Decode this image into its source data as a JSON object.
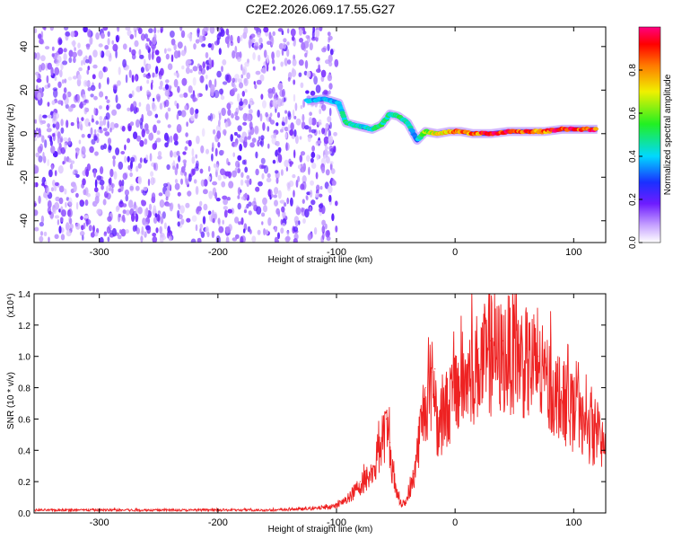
{
  "title": "C2E2.2026.069.17.55.G27",
  "chart_data": [
    {
      "type": "heatmap",
      "name": "spectrogram",
      "xlabel": "Height of straight line (km)",
      "ylabel": "Frequency (Hz)",
      "xlim": [
        -355,
        127
      ],
      "ylim": [
        -50,
        49
      ],
      "xticks": [
        -300,
        -200,
        -100,
        0,
        100
      ],
      "yticks": [
        -40,
        -20,
        0,
        20,
        40
      ],
      "colorbar": {
        "label": "Normalized spectral amplitude",
        "range": [
          0.0,
          1.0
        ],
        "ticks": [
          0.0,
          0.2,
          0.4,
          0.6,
          0.8
        ],
        "tick_labels": [
          "0.0",
          "0.2",
          "0.4",
          "0.6",
          "0.8"
        ]
      },
      "noise_region": {
        "x_from": -355,
        "x_to": -100,
        "amplitude": 0.12
      },
      "signal_track": [
        {
          "x": -125,
          "freq": 15,
          "amplitude": 0.38
        },
        {
          "x": -110,
          "freq": 16,
          "amplitude": 0.4
        },
        {
          "x": -98,
          "freq": 14,
          "amplitude": 0.36
        },
        {
          "x": -92,
          "freq": 5,
          "amplitude": 0.5
        },
        {
          "x": -85,
          "freq": 4,
          "amplitude": 0.45
        },
        {
          "x": -78,
          "freq": 3,
          "amplitude": 0.4
        },
        {
          "x": -70,
          "freq": 2,
          "amplitude": 0.45
        },
        {
          "x": -62,
          "freq": 4,
          "amplitude": 0.5
        },
        {
          "x": -55,
          "freq": 9,
          "amplitude": 0.45
        },
        {
          "x": -48,
          "freq": 8,
          "amplitude": 0.5
        },
        {
          "x": -40,
          "freq": 5,
          "amplitude": 0.45
        },
        {
          "x": -32,
          "freq": -3,
          "amplitude": 0.35
        },
        {
          "x": -25,
          "freq": 1,
          "amplitude": 0.6
        },
        {
          "x": -15,
          "freq": 0,
          "amplitude": 0.7
        },
        {
          "x": -5,
          "freq": 1,
          "amplitude": 0.75
        },
        {
          "x": 5,
          "freq": 1,
          "amplitude": 0.85
        },
        {
          "x": 15,
          "freq": 0,
          "amplitude": 0.8
        },
        {
          "x": 30,
          "freq": 0,
          "amplitude": 0.9
        },
        {
          "x": 45,
          "freq": 1,
          "amplitude": 0.95
        },
        {
          "x": 60,
          "freq": 1,
          "amplitude": 0.85
        },
        {
          "x": 75,
          "freq": 1,
          "amplitude": 0.8
        },
        {
          "x": 90,
          "freq": 2,
          "amplitude": 0.95
        },
        {
          "x": 105,
          "freq": 2,
          "amplitude": 0.9
        },
        {
          "x": 120,
          "freq": 2,
          "amplitude": 0.9
        }
      ]
    },
    {
      "type": "line",
      "name": "snr",
      "xlabel": "Height of straight line (km)",
      "ylabel": "SNR (10 * v/v)",
      "scale_label": "(x10⁴)",
      "xlim": [
        -355,
        127
      ],
      "ylim": [
        0.0,
        1.4
      ],
      "xticks": [
        -300,
        -200,
        -100,
        0,
        100
      ],
      "yticks": [
        0.0,
        0.2,
        0.4,
        0.6,
        0.8,
        1.0,
        1.2,
        1.4
      ],
      "ytick_labels": [
        "0.0",
        "0.2",
        "0.4",
        "0.6",
        "0.8",
        "1.0",
        "1.2",
        "1.4"
      ],
      "color": "#ee2222",
      "x": [
        -355,
        -300,
        -250,
        -200,
        -150,
        -120,
        -100,
        -90,
        -80,
        -70,
        -65,
        -60,
        -58,
        -55,
        -50,
        -45,
        -40,
        -35,
        -30,
        -25,
        -20,
        -17,
        -15,
        -10,
        0,
        10,
        20,
        30,
        40,
        50,
        60,
        70,
        80,
        90,
        100,
        110,
        120,
        127
      ],
      "y": [
        0.02,
        0.02,
        0.02,
        0.02,
        0.02,
        0.03,
        0.05,
        0.1,
        0.2,
        0.28,
        0.4,
        0.55,
        0.6,
        0.45,
        0.15,
        0.05,
        0.1,
        0.25,
        0.55,
        0.8,
        0.9,
        0.92,
        0.6,
        0.7,
        0.85,
        0.95,
        1.05,
        1.1,
        1.1,
        1.15,
        1.05,
        1.0,
        0.9,
        0.8,
        0.7,
        0.6,
        0.5,
        0.45
      ]
    }
  ]
}
